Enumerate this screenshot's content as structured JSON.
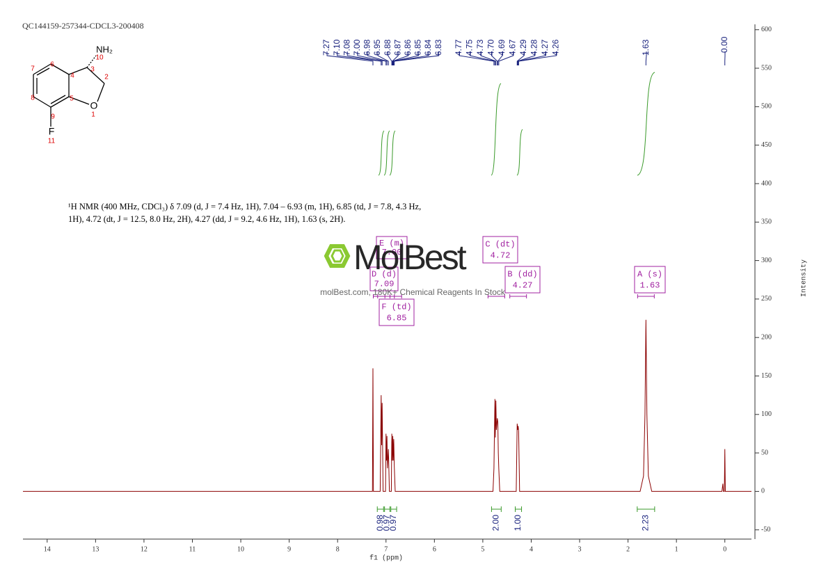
{
  "chart_data": {
    "type": "line",
    "title": "QC144159-257344-CDCL3-200408",
    "x_label": "f1 (ppm)",
    "y_label": "Intensity",
    "xlim": [
      14.5,
      -0.55
    ],
    "xticks": [
      14,
      13,
      12,
      11,
      10,
      9,
      8,
      7,
      6,
      5,
      4,
      3,
      2,
      1,
      0
    ],
    "ylim": [
      -62,
      607
    ],
    "yticks": [
      -50,
      0,
      50,
      100,
      150,
      200,
      250,
      300,
      350,
      400,
      450,
      500,
      550,
      600
    ],
    "series": [
      {
        "name": "spectrum",
        "color": "#8b0000",
        "x": [
          14.5,
          7.35,
          7.28,
          7.27,
          7.26,
          7.12,
          7.1,
          7.09,
          7.08,
          7.06,
          7.01,
          7.0,
          6.99,
          6.98,
          6.97,
          6.95,
          6.93,
          6.89,
          6.88,
          6.87,
          6.86,
          6.85,
          6.84,
          6.83,
          6.81,
          4.79,
          4.77,
          4.75,
          4.74,
          4.73,
          4.72,
          4.7,
          4.69,
          4.68,
          4.67,
          4.65,
          4.31,
          4.29,
          4.28,
          4.27,
          4.26,
          4.24,
          1.75,
          1.68,
          1.65,
          1.63,
          1.61,
          1.58,
          1.51,
          0.06,
          0.04,
          0.03,
          0.01,
          0.0,
          -0.01,
          -0.55
        ],
        "values": [
          0,
          0,
          0,
          160,
          0,
          0,
          125,
          60,
          115,
          0,
          0,
          75,
          40,
          72,
          30,
          55,
          0,
          0,
          75,
          40,
          72,
          40,
          68,
          35,
          0,
          0,
          30,
          120,
          70,
          118,
          80,
          95,
          90,
          50,
          30,
          0,
          0,
          88,
          80,
          85,
          78,
          0,
          0,
          20,
          100,
          223,
          100,
          20,
          0,
          0,
          10,
          0,
          0,
          55,
          0,
          0
        ]
      }
    ],
    "peak_labels": [
      7.27,
      {
        "value": 7.1,
        "label": "7.10"
      },
      7.08,
      {
        "value": 7.0,
        "label": "7.00"
      },
      6.98,
      6.95,
      6.88,
      6.87,
      6.86,
      6.85,
      6.84,
      6.83,
      4.77,
      4.75,
      4.73,
      {
        "value": 4.7,
        "label": "4.70"
      },
      4.69,
      4.67,
      4.29,
      4.28,
      4.27,
      4.26,
      1.63,
      {
        "value": 0,
        "label": "-0.00"
      }
    ],
    "integrals": [
      {
        "range": [
          7.18,
          7.05
        ],
        "value": 0.98
      },
      {
        "range": [
          7.03,
          6.92
        ],
        "value": 0.97
      },
      {
        "range": [
          6.9,
          6.78
        ],
        "value": 0.97
      },
      {
        "range": [
          4.82,
          4.62
        ],
        "value": {
          "value": 2,
          "label": "2.00"
        }
      },
      {
        "range": [
          4.33,
          4.2
        ],
        "value": {
          "value": 1,
          "label": "1.00"
        }
      },
      {
        "range": [
          1.81,
          1.45
        ],
        "value": 2.23
      }
    ],
    "multiplets": [
      {
        "label": "E (m)",
        "shift": {
          "value": 7,
          "label": "7.00"
        }
      },
      {
        "label": "D (d)",
        "shift": 7.09
      },
      {
        "label": "F (td)",
        "shift": 6.85
      },
      {
        "label": "C (dt)",
        "shift": 4.72
      },
      {
        "label": "B (dd)",
        "shift": 4.27
      },
      {
        "label": "A (s)",
        "shift": 1.63
      }
    ],
    "description": [
      "¹H NMR (400 MHz, CDCl₃) δ 7.09 (d, J = 7.4 Hz, 1H), 7.04 – 6.93 (m, 1H), 6.85 (td, J = 7.8, 4.3 Hz,",
      "1H), 4.72 (dt, J = 12.5, 8.0 Hz, 2H), 4.27 (dd, J = 9.2, 4.6 Hz, 1H), 1.63 (s, 2H)."
    ],
    "molecule_labels": [
      "NH₂",
      "10",
      "3",
      "2",
      "O",
      "1",
      "4",
      "5",
      "6",
      "7",
      "8",
      "9",
      "F",
      "11"
    ],
    "watermark": {
      "brand": "MolBest",
      "tagline": "molBest.com, 180K+ Chemical Reagents In Stock"
    }
  }
}
